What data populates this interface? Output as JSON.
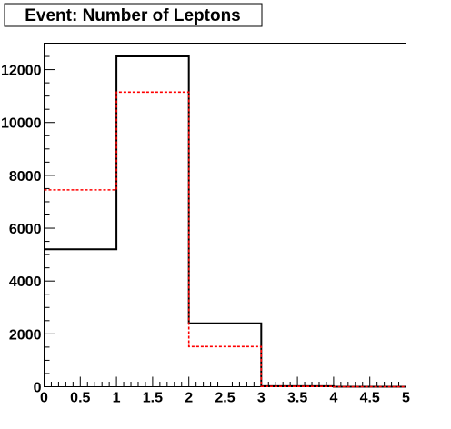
{
  "chart_data": {
    "type": "histogram",
    "title": "Event: Number of Leptons",
    "xlim": [
      0,
      5
    ],
    "ylim": [
      0,
      13000
    ],
    "x_ticks": [
      "0",
      "0.5",
      "1",
      "1.5",
      "2",
      "2.5",
      "3",
      "3.5",
      "4",
      "4.5",
      "5"
    ],
    "y_ticks": [
      "0",
      "2000",
      "4000",
      "6000",
      "8000",
      "10000",
      "12000"
    ],
    "bin_edges": [
      0,
      1,
      2,
      3,
      4,
      5
    ],
    "series": [
      {
        "style": "solid",
        "color": "#000000",
        "values": [
          5200,
          12500,
          2400,
          20,
          0
        ]
      },
      {
        "style": "dashed",
        "color": "#ff0000",
        "values": [
          7450,
          11150,
          1520,
          10,
          0
        ]
      }
    ],
    "grid": false
  }
}
